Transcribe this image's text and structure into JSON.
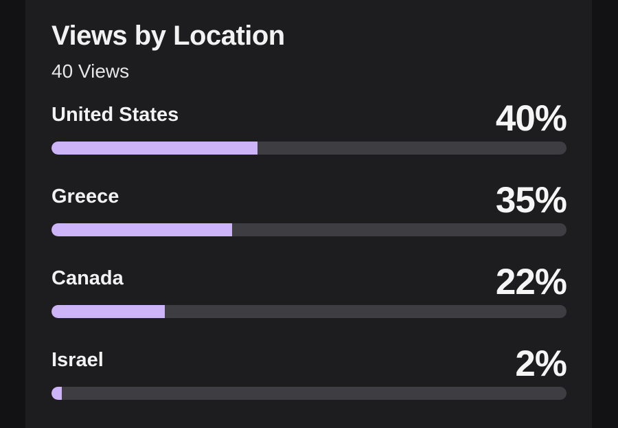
{
  "card": {
    "title": "Views by Location",
    "subtitle": "40 Views"
  },
  "locations": [
    {
      "name": "United States",
      "percent_label": "40%",
      "fraction": 0.4
    },
    {
      "name": "Greece",
      "percent_label": "35%",
      "fraction": 0.35
    },
    {
      "name": "Canada",
      "percent_label": "22%",
      "fraction": 0.22
    },
    {
      "name": "Israel",
      "percent_label": "2%",
      "fraction": 0.02
    }
  ],
  "colors": {
    "background": "#121214",
    "card": "#1d1d20",
    "bar_fill": "#cdb3f8",
    "bar_track": "#3e3e42",
    "text": "#f2f2f2"
  }
}
